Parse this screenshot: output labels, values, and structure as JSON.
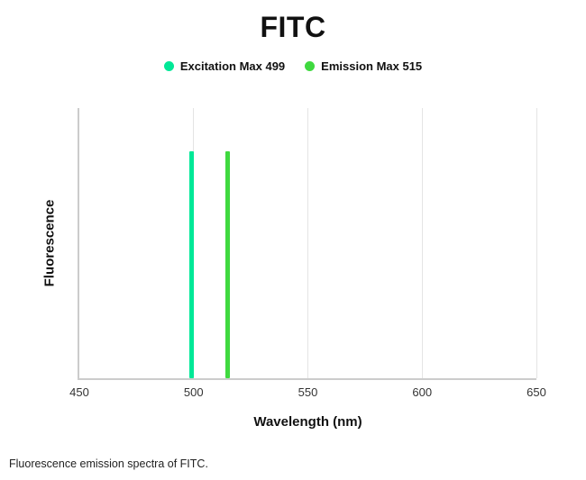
{
  "title": "FITC",
  "caption": "Fluorescence emission spectra of FITC.",
  "legend": {
    "excitation_label": "Excitation Max 499",
    "emission_label": "Emission Max 515"
  },
  "chart_data": {
    "type": "line",
    "title": "FITC",
    "xlabel": "Wavelength (nm)",
    "ylabel": "Fluorescence",
    "xlim": [
      450,
      650
    ],
    "xticks": [
      450,
      500,
      550,
      600,
      650
    ],
    "grid": "light vertical gridlines at x ticks",
    "legend_position": "top",
    "series": [
      {
        "name": "Excitation Max 499",
        "color": "#00e897",
        "marker": "dot",
        "shape": "vertical-spike",
        "peak_x": 499,
        "peak_height_fraction": 0.84
      },
      {
        "name": "Emission Max 515",
        "color": "#3fd93f",
        "marker": "dot",
        "shape": "vertical-spike",
        "peak_x": 515,
        "peak_height_fraction": 0.84
      }
    ]
  }
}
